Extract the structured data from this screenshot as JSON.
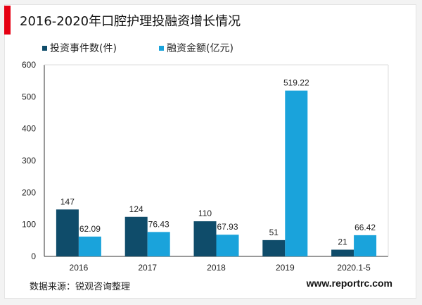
{
  "title": "2016-2020年口腔护理投融资增长情况",
  "source": "数据来源：锐观咨询整理",
  "website": "www.reportrc.com",
  "colors": {
    "accent": "#e60012",
    "series1": "#0f4c6a",
    "series2": "#1aa3db"
  },
  "chart_data": {
    "type": "bar",
    "title": "2016-2020年口腔护理投融资增长情况",
    "categories": [
      "2016",
      "2017",
      "2018",
      "2019",
      "2020.1-5"
    ],
    "series": [
      {
        "name": "投资事件数(件)",
        "values": [
          147,
          124,
          110,
          51,
          21
        ],
        "labels": [
          "147",
          "124",
          "110",
          "51",
          "21"
        ]
      },
      {
        "name": "融资金额(亿元)",
        "values": [
          62.09,
          76.43,
          67.93,
          519.22,
          66.42
        ],
        "labels": [
          "62.09",
          "76.43",
          "67.93",
          "519.22",
          "66.42"
        ]
      }
    ],
    "yticks": [
      "0",
      "100",
      "200",
      "300",
      "400",
      "500",
      "600"
    ],
    "ylim": [
      0,
      600
    ],
    "grid": false,
    "legend": "top-left"
  }
}
